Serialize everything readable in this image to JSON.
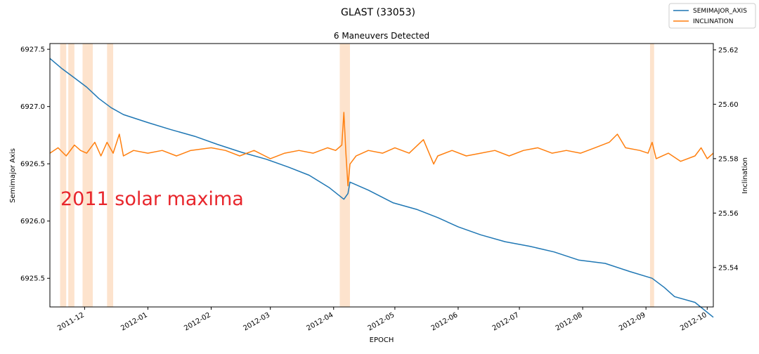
{
  "chart_data": {
    "type": "line",
    "suptitle": "GLAST (33053)",
    "title": "6 Maneuvers Detected",
    "xlabel": "EPOCH",
    "ylabel_left": "Semimajor Axis",
    "ylabel_right": "Inclination",
    "annotation": {
      "text": "2011 solar maxima",
      "color": "#e8262c"
    },
    "legend_position": "top-right",
    "grid": false,
    "xlim": [
      "2011-11-14",
      "2012-10-04"
    ],
    "ylim_left": [
      6925.25,
      6927.55
    ],
    "ylim_right": [
      25.5255,
      25.6223
    ],
    "x_ticks": [
      "2011-12",
      "2012-01",
      "2012-02",
      "2012-03",
      "2012-04",
      "2012-05",
      "2012-06",
      "2012-07",
      "2012-08",
      "2012-09",
      "2012-10"
    ],
    "x_tick_dates": [
      "2011-12-01",
      "2012-01-01",
      "2012-02-01",
      "2012-03-01",
      "2012-04-01",
      "2012-05-01",
      "2012-06-01",
      "2012-07-01",
      "2012-08-01",
      "2012-09-01",
      "2012-10-01"
    ],
    "y_ticks_left": [
      "6925.5",
      "6926.0",
      "6926.5",
      "6927.0",
      "6927.5"
    ],
    "y_ticks_right": [
      "25.54",
      "25.56",
      "25.58",
      "25.60",
      "25.62"
    ],
    "maneuver_color": "#fde3cd",
    "maneuver_windows": [
      [
        "2011-11-19",
        "2011-11-22"
      ],
      [
        "2011-11-23",
        "2011-11-26"
      ],
      [
        "2011-11-30",
        "2011-12-05"
      ],
      [
        "2011-12-12",
        "2011-12-15"
      ],
      [
        "2012-04-04",
        "2012-04-09"
      ],
      [
        "2012-09-03",
        "2012-09-05"
      ]
    ],
    "series": [
      {
        "name": "SEMIMAJOR_AXIS",
        "axis": "left",
        "color": "#1f77b4",
        "points": [
          [
            "2011-11-14",
            6927.42
          ],
          [
            "2011-11-20",
            6927.33
          ],
          [
            "2011-11-26",
            6927.25
          ],
          [
            "2011-12-02",
            6927.17
          ],
          [
            "2011-12-08",
            6927.07
          ],
          [
            "2011-12-14",
            6926.99
          ],
          [
            "2011-12-20",
            6926.93
          ],
          [
            "2012-01-01",
            6926.86
          ],
          [
            "2012-01-12",
            6926.8
          ],
          [
            "2012-01-24",
            6926.74
          ],
          [
            "2012-02-04",
            6926.67
          ],
          [
            "2012-02-16",
            6926.6
          ],
          [
            "2012-02-28",
            6926.54
          ],
          [
            "2012-03-10",
            6926.47
          ],
          [
            "2012-03-20",
            6926.4
          ],
          [
            "2012-03-30",
            6926.29
          ],
          [
            "2012-04-06",
            6926.19
          ],
          [
            "2012-04-08",
            6926.24
          ],
          [
            "2012-04-09",
            6926.34
          ],
          [
            "2012-04-18",
            6926.27
          ],
          [
            "2012-04-30",
            6926.16
          ],
          [
            "2012-05-12",
            6926.1
          ],
          [
            "2012-05-22",
            6926.03
          ],
          [
            "2012-06-01",
            6925.95
          ],
          [
            "2012-06-12",
            6925.88
          ],
          [
            "2012-06-24",
            6925.82
          ],
          [
            "2012-07-06",
            6925.78
          ],
          [
            "2012-07-18",
            6925.73
          ],
          [
            "2012-07-30",
            6925.66
          ],
          [
            "2012-08-12",
            6925.63
          ],
          [
            "2012-08-24",
            6925.56
          ],
          [
            "2012-09-04",
            6925.5
          ],
          [
            "2012-09-10",
            6925.42
          ],
          [
            "2012-09-15",
            6925.34
          ],
          [
            "2012-09-25",
            6925.29
          ],
          [
            "2012-10-04",
            6925.16
          ]
        ]
      },
      {
        "name": "INCLINATION",
        "axis": "right",
        "color": "#ff7f0e",
        "points": [
          [
            "2011-11-14",
            25.582
          ],
          [
            "2011-11-18",
            25.584
          ],
          [
            "2011-11-22",
            25.581
          ],
          [
            "2011-11-26",
            25.585
          ],
          [
            "2011-11-29",
            25.583
          ],
          [
            "2011-12-02",
            25.582
          ],
          [
            "2011-12-06",
            25.586
          ],
          [
            "2011-12-09",
            25.581
          ],
          [
            "2011-12-12",
            25.586
          ],
          [
            "2011-12-15",
            25.582
          ],
          [
            "2011-12-18",
            25.589
          ],
          [
            "2011-12-20",
            25.581
          ],
          [
            "2011-12-25",
            25.583
          ],
          [
            "2012-01-01",
            25.582
          ],
          [
            "2012-01-08",
            25.583
          ],
          [
            "2012-01-15",
            25.581
          ],
          [
            "2012-01-22",
            25.583
          ],
          [
            "2012-02-01",
            25.584
          ],
          [
            "2012-02-08",
            25.583
          ],
          [
            "2012-02-15",
            25.581
          ],
          [
            "2012-02-22",
            25.583
          ],
          [
            "2012-03-01",
            25.58
          ],
          [
            "2012-03-08",
            25.582
          ],
          [
            "2012-03-15",
            25.583
          ],
          [
            "2012-03-22",
            25.582
          ],
          [
            "2012-03-29",
            25.584
          ],
          [
            "2012-04-02",
            25.583
          ],
          [
            "2012-04-05",
            25.585
          ],
          [
            "2012-04-06",
            25.597
          ],
          [
            "2012-04-07",
            25.582
          ],
          [
            "2012-04-08",
            25.57
          ],
          [
            "2012-04-09",
            25.578
          ],
          [
            "2012-04-12",
            25.581
          ],
          [
            "2012-04-18",
            25.583
          ],
          [
            "2012-04-25",
            25.582
          ],
          [
            "2012-05-01",
            25.584
          ],
          [
            "2012-05-08",
            25.582
          ],
          [
            "2012-05-15",
            25.587
          ],
          [
            "2012-05-20",
            25.578
          ],
          [
            "2012-05-22",
            25.581
          ],
          [
            "2012-05-29",
            25.583
          ],
          [
            "2012-06-05",
            25.581
          ],
          [
            "2012-06-12",
            25.582
          ],
          [
            "2012-06-19",
            25.583
          ],
          [
            "2012-06-26",
            25.581
          ],
          [
            "2012-07-03",
            25.583
          ],
          [
            "2012-07-10",
            25.584
          ],
          [
            "2012-07-17",
            25.582
          ],
          [
            "2012-07-24",
            25.583
          ],
          [
            "2012-07-31",
            25.582
          ],
          [
            "2012-08-07",
            25.584
          ],
          [
            "2012-08-14",
            25.586
          ],
          [
            "2012-08-18",
            25.589
          ],
          [
            "2012-08-22",
            25.584
          ],
          [
            "2012-08-29",
            25.583
          ],
          [
            "2012-09-02",
            25.582
          ],
          [
            "2012-09-04",
            25.586
          ],
          [
            "2012-09-06",
            25.58
          ],
          [
            "2012-09-12",
            25.582
          ],
          [
            "2012-09-18",
            25.579
          ],
          [
            "2012-09-25",
            25.581
          ],
          [
            "2012-09-28",
            25.584
          ],
          [
            "2012-10-01",
            25.58
          ],
          [
            "2012-10-04",
            25.582
          ]
        ]
      }
    ]
  }
}
